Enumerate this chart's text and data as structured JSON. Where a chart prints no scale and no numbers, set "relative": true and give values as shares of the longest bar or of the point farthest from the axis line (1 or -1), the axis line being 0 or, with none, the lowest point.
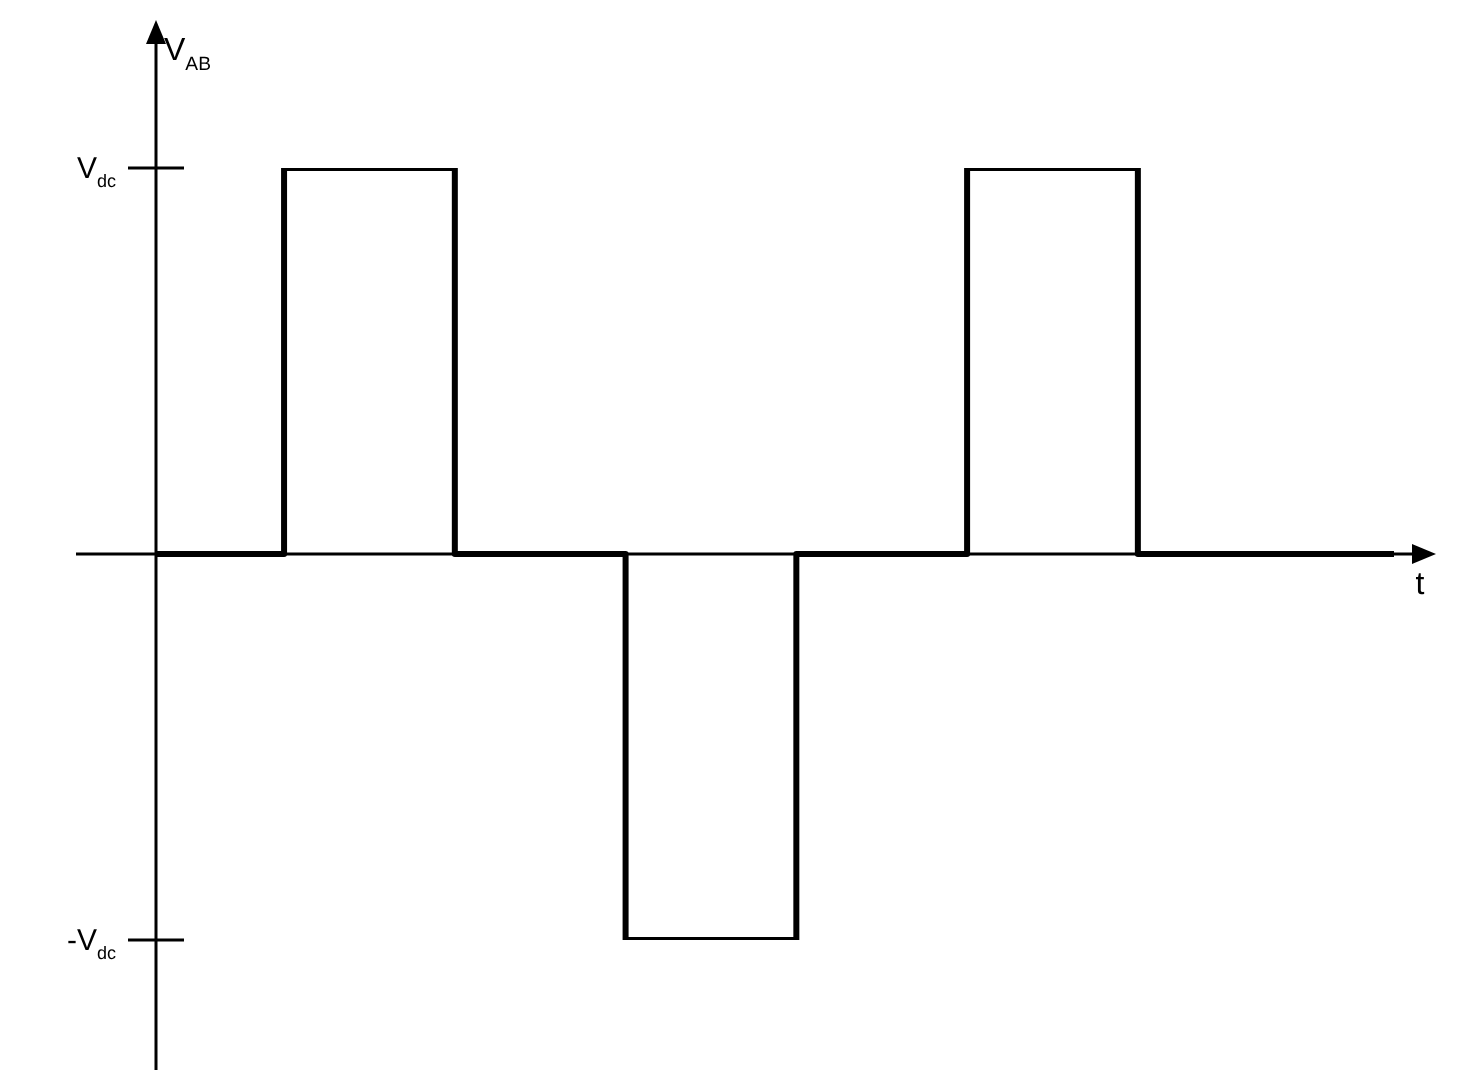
{
  "chart_data": {
    "type": "step",
    "ylabel": "V$_{AB}$",
    "xlabel": "t",
    "categories": [
      null,
      null,
      null,
      null,
      null,
      null,
      null,
      null,
      null,
      null,
      null,
      null,
      null,
      null,
      null,
      null,
      null,
      null,
      null,
      null,
      null,
      null,
      null,
      null,
      null,
      null,
      null,
      null,
      null,
      null
    ],
    "series": [
      {
        "color": "#000000",
        "values": [
          0,
          0,
          0,
          1,
          1,
          1,
          1,
          0,
          0,
          0,
          0,
          -1,
          -1,
          -1,
          -1,
          0,
          0,
          0,
          0,
          1,
          1,
          1,
          1,
          0,
          0,
          0,
          0,
          0,
          0,
          0
        ]
      }
    ],
    "relative": true,
    "annotations": [
      "V$_{dc}$",
      "-V$_{dc}$"
    ],
    "legend": false,
    "marker": "none",
    "line_style": "solid"
  }
}
